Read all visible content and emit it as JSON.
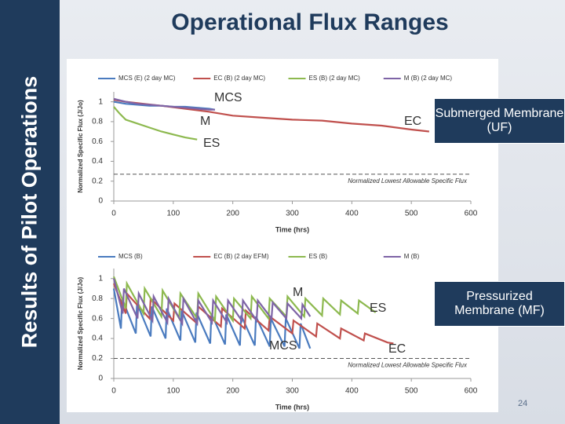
{
  "slide": {
    "sidebar": "Results of Pilot Operations",
    "title": "Operational Flux Ranges",
    "callouts": [
      "Submerged Membrane (UF)",
      "Pressurized Membrane (MF)"
    ],
    "page_number": "24"
  },
  "chart_data": [
    {
      "type": "line",
      "xlabel": "Time (hrs)",
      "ylabel": "Normalized Specific Flux (J/Jo)",
      "xlim": [
        0,
        600
      ],
      "xticks": [
        0,
        100,
        200,
        300,
        400,
        500,
        600
      ],
      "ylim": [
        0,
        1.1
      ],
      "yticks": [
        0,
        0.2,
        0.4,
        0.6,
        0.8,
        1
      ],
      "threshold": {
        "value": 0.27,
        "label": "Normalized Lowest Allowable Specific Flux"
      },
      "series": [
        {
          "name": "MCS (E) (2 day MC)",
          "color": "#4a7bbf",
          "label": "MCS",
          "x": [
            0,
            20,
            40,
            60,
            80,
            100,
            120,
            140,
            160,
            170
          ],
          "values": [
            1.0,
            0.98,
            0.97,
            0.96,
            0.96,
            0.95,
            0.95,
            0.94,
            0.93,
            0.92
          ]
        },
        {
          "name": "EC (B) (2 day MC)",
          "color": "#c0504d",
          "label": "EC",
          "x": [
            0,
            20,
            50,
            80,
            120,
            160,
            200,
            250,
            300,
            350,
            400,
            450,
            500,
            530
          ],
          "values": [
            1.02,
            1.0,
            0.98,
            0.96,
            0.93,
            0.9,
            0.86,
            0.84,
            0.82,
            0.81,
            0.78,
            0.76,
            0.72,
            0.7
          ]
        },
        {
          "name": "ES (B) (2 day MC)",
          "color": "#8db94f",
          "label": "ES",
          "x": [
            0,
            10,
            20,
            40,
            60,
            80,
            100,
            120,
            140
          ],
          "values": [
            0.95,
            0.88,
            0.82,
            0.78,
            0.74,
            0.7,
            0.67,
            0.64,
            0.62
          ]
        },
        {
          "name": "M (B) (2 day MC)",
          "color": "#7e64a6",
          "label": "M",
          "x": [
            0,
            20,
            40,
            60,
            80,
            100,
            120,
            140,
            160,
            170
          ],
          "values": [
            1.03,
            1.0,
            0.98,
            0.97,
            0.96,
            0.95,
            0.94,
            0.93,
            0.92,
            0.92
          ]
        }
      ]
    },
    {
      "type": "line",
      "xlabel": "Time (hrs)",
      "ylabel": "Normalized Specific Flux (J/Jo)",
      "xlim": [
        0,
        600
      ],
      "xticks": [
        0,
        100,
        200,
        300,
        400,
        500,
        600
      ],
      "ylim": [
        0,
        1.1
      ],
      "yticks": [
        0,
        0.2,
        0.4,
        0.6,
        0.8,
        1
      ],
      "threshold": {
        "value": 0.2,
        "label": "Normalized Lowest Allowable Specific Flux"
      },
      "series": [
        {
          "name": "MCS (B)",
          "color": "#4a7bbf",
          "label": "MCS",
          "x": [
            0,
            12,
            14,
            37,
            39,
            62,
            64,
            87,
            89,
            112,
            114,
            137,
            139,
            162,
            164,
            187,
            189,
            212,
            214,
            237,
            239,
            262,
            264,
            287,
            289,
            312,
            314,
            330
          ],
          "values": [
            0.9,
            0.5,
            0.8,
            0.45,
            0.75,
            0.42,
            0.72,
            0.4,
            0.7,
            0.38,
            0.68,
            0.36,
            0.66,
            0.35,
            0.65,
            0.34,
            0.64,
            0.33,
            0.63,
            0.33,
            0.62,
            0.32,
            0.6,
            0.32,
            0.6,
            0.3,
            0.55,
            0.3
          ]
        },
        {
          "name": "EC (B) (2 day EFM)",
          "color": "#c0504d",
          "label": "EC",
          "x": [
            0,
            20,
            22,
            60,
            62,
            100,
            102,
            140,
            142,
            180,
            182,
            220,
            222,
            260,
            262,
            300,
            302,
            340,
            342,
            380,
            382,
            420,
            422,
            460,
            470
          ],
          "values": [
            0.95,
            0.65,
            0.85,
            0.6,
            0.8,
            0.58,
            0.75,
            0.55,
            0.72,
            0.52,
            0.7,
            0.5,
            0.68,
            0.48,
            0.62,
            0.45,
            0.58,
            0.42,
            0.55,
            0.4,
            0.5,
            0.38,
            0.45,
            0.36,
            0.35
          ]
        },
        {
          "name": "ES (B)",
          "color": "#8db94f",
          "label": "ES",
          "x": [
            0,
            20,
            22,
            50,
            52,
            80,
            82,
            110,
            112,
            140,
            142,
            170,
            172,
            200,
            202,
            230,
            232,
            260,
            262,
            290,
            292,
            320,
            322,
            350,
            352,
            380,
            382,
            410,
            412,
            440
          ],
          "values": [
            1.02,
            0.7,
            0.95,
            0.65,
            0.9,
            0.62,
            0.88,
            0.6,
            0.85,
            0.6,
            0.85,
            0.58,
            0.82,
            0.58,
            0.8,
            0.6,
            0.82,
            0.6,
            0.8,
            0.62,
            0.82,
            0.62,
            0.8,
            0.63,
            0.8,
            0.64,
            0.78,
            0.65,
            0.78,
            0.66
          ]
        },
        {
          "name": "M (B)",
          "color": "#7e64a6",
          "label": "M",
          "x": [
            0,
            15,
            17,
            40,
            42,
            65,
            67,
            90,
            92,
            115,
            117,
            140,
            142,
            165,
            167,
            190,
            192,
            215,
            217,
            240,
            242,
            265,
            267,
            290,
            292,
            315,
            317,
            330
          ],
          "values": [
            1.0,
            0.65,
            0.9,
            0.6,
            0.85,
            0.58,
            0.82,
            0.56,
            0.8,
            0.55,
            0.8,
            0.55,
            0.78,
            0.56,
            0.78,
            0.56,
            0.78,
            0.58,
            0.78,
            0.58,
            0.78,
            0.6,
            0.76,
            0.6,
            0.75,
            0.6,
            0.74,
            0.62
          ]
        }
      ]
    }
  ]
}
